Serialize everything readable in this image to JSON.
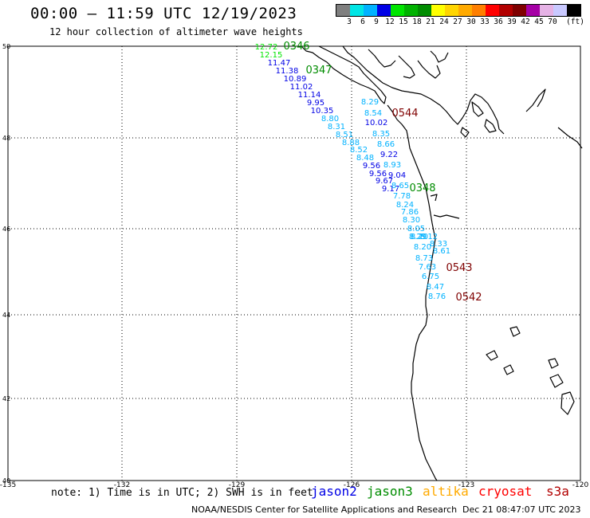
{
  "header": {
    "title": "00:00 – 11:59 UTC 12/19/2023",
    "subtitle": "12 hour collection of altimeter wave heights"
  },
  "colorbar": {
    "colors": [
      "#7f7f7f",
      "#00e5e5",
      "#00b2ff",
      "#0000e5",
      "#00e500",
      "#00b200",
      "#008c00",
      "#ffff00",
      "#ffd500",
      "#ffaa00",
      "#ff7f00",
      "#ff0000",
      "#b20000",
      "#7f0000",
      "#a500a5",
      "#e5b2e5",
      "#c9c9ff",
      "#000000"
    ],
    "labels": [
      "3",
      "6",
      "9",
      "12",
      "15",
      "18",
      "21",
      "24",
      "27",
      "30",
      "33",
      "36",
      "39",
      "42",
      "45",
      "70"
    ],
    "unit": "(ft)"
  },
  "map": {
    "lat_ticks": [
      "50",
      "48",
      "46",
      "44",
      "42",
      "40"
    ],
    "lon_ticks": [
      "-135",
      "-132",
      "-129",
      "-126",
      "-123",
      "-120"
    ],
    "pass_labels": [
      {
        "text": "0346",
        "color": "#008c00"
      },
      {
        "text": "0347",
        "color": "#008c00"
      },
      {
        "text": "0544",
        "color": "#7f0000"
      },
      {
        "text": "0348",
        "color": "#008c00"
      },
      {
        "text": "0543",
        "color": "#7f0000"
      },
      {
        "text": "0542",
        "color": "#7f0000"
      }
    ],
    "swh_values": [
      {
        "text": "12.72",
        "color": "#00e500"
      },
      {
        "text": "12.15",
        "color": "#00e500"
      },
      {
        "text": "11.47",
        "color": "#0000e5"
      },
      {
        "text": "11.38",
        "color": "#0000e5"
      },
      {
        "text": "10.89",
        "color": "#0000e5"
      },
      {
        "text": "11.02",
        "color": "#0000e5"
      },
      {
        "text": "11.14",
        "color": "#0000e5"
      },
      {
        "text": "9.95",
        "color": "#0000e5"
      },
      {
        "text": "10.35",
        "color": "#0000e5"
      },
      {
        "text": "8.80",
        "color": "#00b2ff"
      },
      {
        "text": "8.31",
        "color": "#00b2ff"
      },
      {
        "text": "8.51",
        "color": "#00b2ff"
      },
      {
        "text": "8.88",
        "color": "#00b2ff"
      },
      {
        "text": "8.52",
        "color": "#00b2ff"
      },
      {
        "text": "8.48",
        "color": "#00b2ff"
      },
      {
        "text": "9.56",
        "color": "#0000e5"
      },
      {
        "text": "9.56",
        "color": "#0000e5"
      },
      {
        "text": "9.67",
        "color": "#0000e5"
      },
      {
        "text": "9.17",
        "color": "#0000e5"
      },
      {
        "text": "8.29",
        "color": "#00b2ff"
      },
      {
        "text": "8.54",
        "color": "#00b2ff"
      },
      {
        "text": "10.02",
        "color": "#0000e5"
      },
      {
        "text": "8.35",
        "color": "#00b2ff"
      },
      {
        "text": "8.66",
        "color": "#00b2ff"
      },
      {
        "text": "9.22",
        "color": "#0000e5"
      },
      {
        "text": "8.93",
        "color": "#00b2ff"
      },
      {
        "text": "9.04",
        "color": "#0000e5"
      },
      {
        "text": "8.65",
        "color": "#00b2ff"
      },
      {
        "text": "7.78",
        "color": "#00b2ff"
      },
      {
        "text": "8.24",
        "color": "#00b2ff"
      },
      {
        "text": "7.86",
        "color": "#00b2ff"
      },
      {
        "text": "8.30",
        "color": "#00b2ff"
      },
      {
        "text": "8.05",
        "color": "#00b2ff"
      },
      {
        "text": "8.20",
        "color": "#00b2ff"
      },
      {
        "text": "8.29",
        "color": "#00b2ff"
      },
      {
        "text": "8.12",
        "color": "#00b2ff"
      },
      {
        "text": "8.33",
        "color": "#00b2ff"
      },
      {
        "text": "8.20",
        "color": "#00b2ff"
      },
      {
        "text": "8.61",
        "color": "#00b2ff"
      },
      {
        "text": "8.73",
        "color": "#00b2ff"
      },
      {
        "text": "7.63",
        "color": "#00b2ff"
      },
      {
        "text": "6.75",
        "color": "#00b2ff"
      },
      {
        "text": "8.47",
        "color": "#00b2ff"
      },
      {
        "text": "8.76",
        "color": "#00b2ff"
      }
    ]
  },
  "footer": {
    "note": "note: 1) Time is in UTC; 2) SWH is in feet",
    "satellites": [
      {
        "name": "jason2",
        "color": "#0000e5"
      },
      {
        "name": "jason3",
        "color": "#008c00"
      },
      {
        "name": "altika",
        "color": "#ffaa00"
      },
      {
        "name": "cryosat",
        "color": "#ff0000"
      },
      {
        "name": "s3a",
        "color": "#b20000"
      }
    ],
    "credit": "NOAA/NESDIS Center for Satellite Applications and Research",
    "generated": "Dec 21 08:47:07 UTC 2023"
  }
}
